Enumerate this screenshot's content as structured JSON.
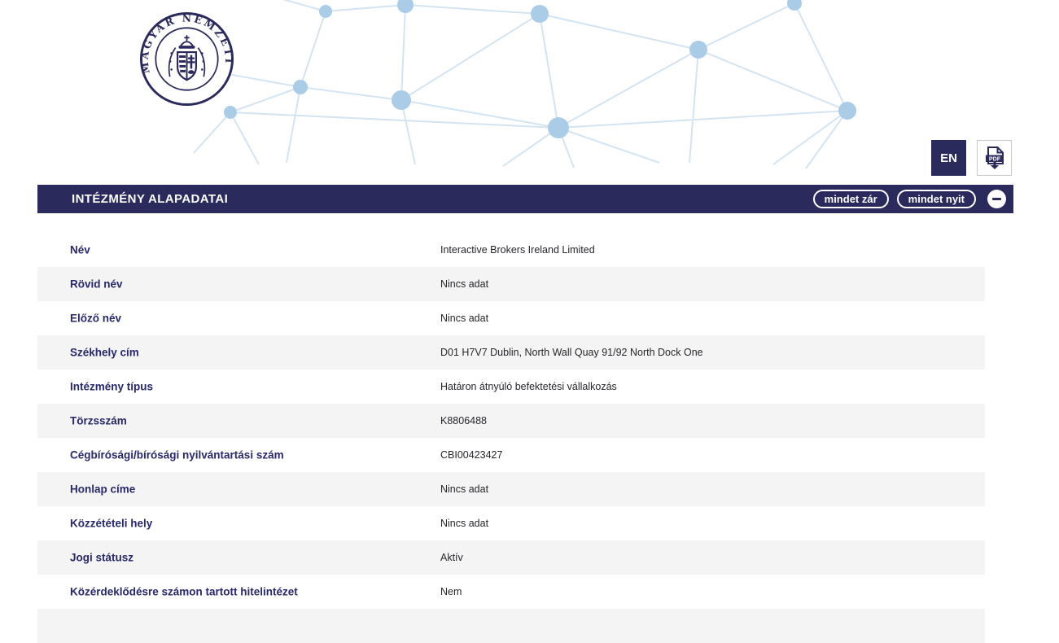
{
  "header": {
    "language_button": "EN",
    "pdf_icon_label": "PDF"
  },
  "logo": {
    "ring_text": "MAGYAR NEMZETI BANK"
  },
  "section": {
    "title": "INTÉZMÉNY ALAPADATAI",
    "collapse_all_label": "mindet zár",
    "expand_all_label": "mindet nyit"
  },
  "table": {
    "rows": [
      {
        "label": "Név",
        "value": "Interactive Brokers Ireland Limited"
      },
      {
        "label": "Rövid név",
        "value": "Nincs adat"
      },
      {
        "label": "Előző név",
        "value": "Nincs adat"
      },
      {
        "label": "Székhely cím",
        "value": "D01 H7V7 Dublin, North Wall Quay 91/92 North Dock One"
      },
      {
        "label": "Intézmény típus",
        "value": "Határon átnyúló befektetési vállalkozás"
      },
      {
        "label": "Törzsszám",
        "value": "K8806488"
      },
      {
        "label": "Cégbírósági/bírósági nyilvántartási szám",
        "value": "CBI00423427"
      },
      {
        "label": "Honlap címe",
        "value": "Nincs adat"
      },
      {
        "label": "Közzétételi hely",
        "value": "Nincs adat"
      },
      {
        "label": "Jogi státusz",
        "value": "Aktív"
      },
      {
        "label": "Közérdeklődésre számon tartott hitelintézet",
        "value": "Nem"
      }
    ]
  },
  "colors": {
    "navy": "#2b2a5c",
    "label_navy": "#28286a",
    "value_text": "#26262b",
    "row_alt_bg": "#f4f4f5",
    "node_blue": "#abcce7",
    "edge_blue": "#d3e4f2",
    "button_border": "#c9c9c9"
  }
}
